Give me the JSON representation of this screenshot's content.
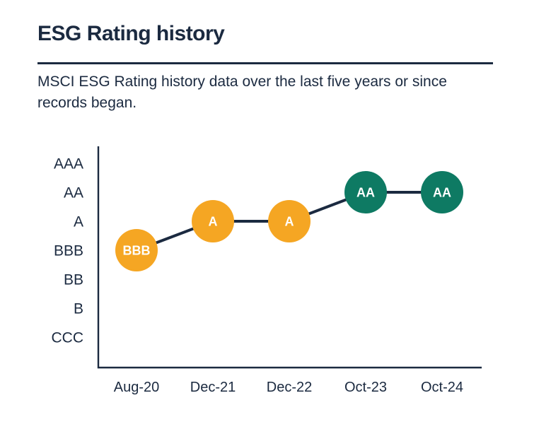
{
  "page": {
    "title": "ESG Rating history",
    "subtitle": "MSCI ESG Rating history data over the last five years or since records began."
  },
  "colors": {
    "text_dark": "#1B2A40",
    "axis_line": "#1B2A40",
    "connector_line": "#1B2A40",
    "point_label": "#FFFFFF",
    "rating_yellow": "#F5A623",
    "rating_teal": "#0E7A63",
    "background": "#FFFFFF"
  },
  "chart_data": {
    "type": "line",
    "title": "ESG Rating history",
    "xlabel": "",
    "ylabel": "",
    "x": [
      "Aug-20",
      "Dec-21",
      "Dec-22",
      "Oct-23",
      "Oct-24"
    ],
    "y_categories_top_to_bottom": [
      "AAA",
      "AA",
      "A",
      "BBB",
      "BB",
      "B",
      "CCC"
    ],
    "series": [
      {
        "name": "MSCI ESG Rating",
        "values": [
          "BBB",
          "A",
          "A",
          "AA",
          "AA"
        ],
        "point_colors": [
          "#F5A623",
          "#F5A623",
          "#F5A623",
          "#0E7A63",
          "#0E7A63"
        ]
      }
    ],
    "grid": false,
    "legend": false,
    "marker_style": "labeled-circle"
  }
}
